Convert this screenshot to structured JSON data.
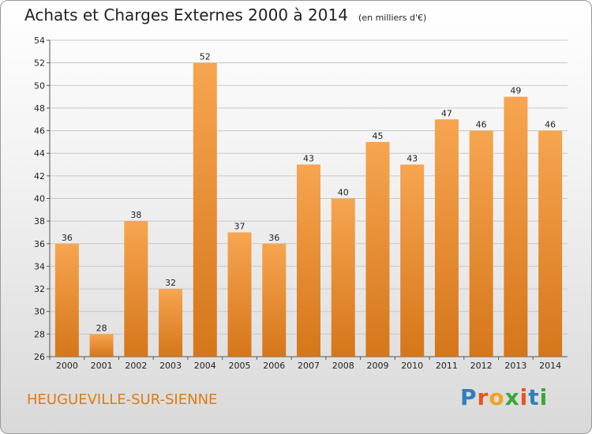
{
  "header": {
    "title": "Achats et Charges Externes 2000 à 2014",
    "unit": "(en milliers d'€)"
  },
  "footer": {
    "commune": "HEUGUEVILLE-SUR-SIENNE",
    "logo": "Proxiti"
  },
  "colors": {
    "bar_light": "#f7a550",
    "bar_dark": "#d5761a",
    "grid": "#c8c8c8",
    "commune_text": "#e07a10"
  },
  "chart_data": {
    "type": "bar",
    "title": "Achats et Charges Externes 2000 à 2014",
    "subtitle": "(en milliers d'€)",
    "categories": [
      "2000",
      "2001",
      "2002",
      "2003",
      "2004",
      "2005",
      "2006",
      "2007",
      "2008",
      "2009",
      "2010",
      "2011",
      "2012",
      "2013",
      "2014"
    ],
    "values": [
      36,
      28,
      38,
      32,
      52,
      37,
      36,
      43,
      40,
      45,
      43,
      47,
      46,
      49,
      46
    ],
    "ylim": [
      26,
      54
    ],
    "yticks": [
      26,
      28,
      30,
      32,
      34,
      36,
      38,
      40,
      42,
      44,
      46,
      48,
      50,
      52,
      54
    ],
    "xlabel": "",
    "ylabel": "",
    "grid": true,
    "legend": "none"
  }
}
